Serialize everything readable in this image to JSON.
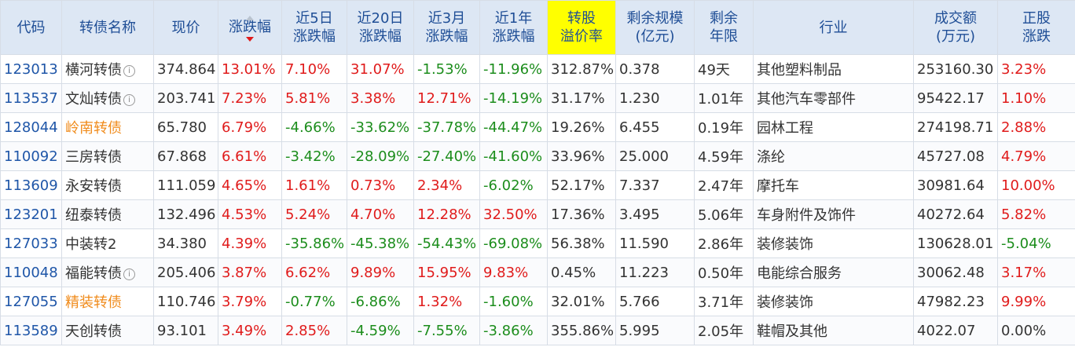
{
  "headers": {
    "code": "代码",
    "name": "转债名称",
    "price": "现价",
    "change": "涨跌幅",
    "d5_l1": "近5日",
    "d5_l2": "涨跌幅",
    "d20_l1": "近20日",
    "d20_l2": "涨跌幅",
    "m3_l1": "近3月",
    "m3_l2": "涨跌幅",
    "y1_l1": "近1年",
    "y1_l2": "涨跌幅",
    "prem_l1": "转股",
    "prem_l2": "溢价率",
    "scale_l1": "剩余规模",
    "scale_l2": "(亿元)",
    "term_l1": "剩余",
    "term_l2": "年限",
    "industry": "行业",
    "vol_l1": "成交额",
    "vol_l2": "(万元)",
    "stock_l1": "正股",
    "stock_l2": "涨跌"
  },
  "colors": {
    "up": "#e01b1b",
    "down": "#1c8d1c",
    "code": "#1f56a8",
    "highlight_name": "#f08b1b",
    "premium_header_bg": "#ffff00"
  },
  "rows": [
    {
      "code": "123013",
      "name": "横河转债",
      "info": "i",
      "name_color": "normal",
      "price": "374.864",
      "change": "13.01%",
      "d5": "7.10%",
      "d20": "31.07%",
      "m3": "-1.53%",
      "y1": "-11.96%",
      "premium": "312.87%",
      "scale": "0.378",
      "term": "49天",
      "industry": "其他塑料制品",
      "volume": "253160.30",
      "stock": "3.23%"
    },
    {
      "code": "113537",
      "name": "文灿转债",
      "info": "i",
      "name_color": "normal",
      "price": "203.741",
      "change": "7.23%",
      "d5": "5.81%",
      "d20": "3.38%",
      "m3": "12.71%",
      "y1": "-14.19%",
      "premium": "31.17%",
      "scale": "1.230",
      "term": "1.01年",
      "industry": "其他汽车零部件",
      "volume": "95422.17",
      "stock": "1.10%"
    },
    {
      "code": "128044",
      "name": "岭南转债",
      "info": "",
      "name_color": "orange",
      "price": "65.780",
      "change": "6.79%",
      "d5": "-4.66%",
      "d20": "-33.62%",
      "m3": "-37.78%",
      "y1": "-44.47%",
      "premium": "19.26%",
      "scale": "6.455",
      "term": "0.19年",
      "industry": "园林工程",
      "volume": "274198.71",
      "stock": "2.88%"
    },
    {
      "code": "110092",
      "name": "三房转债",
      "info": "",
      "name_color": "normal",
      "price": "67.868",
      "change": "6.61%",
      "d5": "-3.42%",
      "d20": "-28.09%",
      "m3": "-27.40%",
      "y1": "-41.60%",
      "premium": "33.96%",
      "scale": "25.000",
      "term": "4.59年",
      "industry": "涤纶",
      "volume": "45727.08",
      "stock": "4.79%"
    },
    {
      "code": "113609",
      "name": "永安转债",
      "info": "",
      "name_color": "normal",
      "price": "111.059",
      "change": "4.65%",
      "d5": "1.61%",
      "d20": "0.73%",
      "m3": "2.34%",
      "y1": "-6.02%",
      "premium": "52.17%",
      "scale": "7.337",
      "term": "2.47年",
      "industry": "摩托车",
      "volume": "30981.64",
      "stock": "10.00%"
    },
    {
      "code": "123201",
      "name": "纽泰转债",
      "info": "",
      "name_color": "normal",
      "price": "132.496",
      "change": "4.53%",
      "d5": "5.24%",
      "d20": "4.70%",
      "m3": "12.28%",
      "y1": "32.50%",
      "premium": "17.36%",
      "scale": "3.495",
      "term": "5.06年",
      "industry": "车身附件及饰件",
      "volume": "40272.64",
      "stock": "5.82%"
    },
    {
      "code": "127033",
      "name": "中装转2",
      "info": "",
      "name_color": "normal",
      "price": "34.380",
      "change": "4.39%",
      "d5": "-35.86%",
      "d20": "-45.38%",
      "m3": "-54.43%",
      "y1": "-69.08%",
      "premium": "56.38%",
      "scale": "11.590",
      "term": "2.86年",
      "industry": "装修装饰",
      "volume": "130628.01",
      "stock": "-5.04%"
    },
    {
      "code": "110048",
      "name": "福能转债",
      "info": "i",
      "name_color": "normal",
      "price": "205.406",
      "change": "3.87%",
      "d5": "6.62%",
      "d20": "9.89%",
      "m3": "15.95%",
      "y1": "9.83%",
      "premium": "0.45%",
      "scale": "11.223",
      "term": "0.50年",
      "industry": "电能综合服务",
      "volume": "30062.48",
      "stock": "3.17%"
    },
    {
      "code": "127055",
      "name": "精装转债",
      "info": "",
      "name_color": "orange",
      "price": "110.746",
      "change": "3.79%",
      "d5": "-0.77%",
      "d20": "-6.86%",
      "m3": "1.32%",
      "y1": "-1.60%",
      "premium": "32.01%",
      "scale": "5.766",
      "term": "3.71年",
      "industry": "装修装饰",
      "volume": "47982.23",
      "stock": "9.99%"
    },
    {
      "code": "113589",
      "name": "天创转债",
      "info": "",
      "name_color": "normal",
      "price": "93.101",
      "change": "3.49%",
      "d5": "2.85%",
      "d20": "-4.59%",
      "m3": "-7.55%",
      "y1": "-3.86%",
      "premium": "355.86%",
      "scale": "5.995",
      "term": "2.05年",
      "industry": "鞋帽及其他",
      "volume": "4022.07",
      "stock": "0.00%"
    }
  ]
}
